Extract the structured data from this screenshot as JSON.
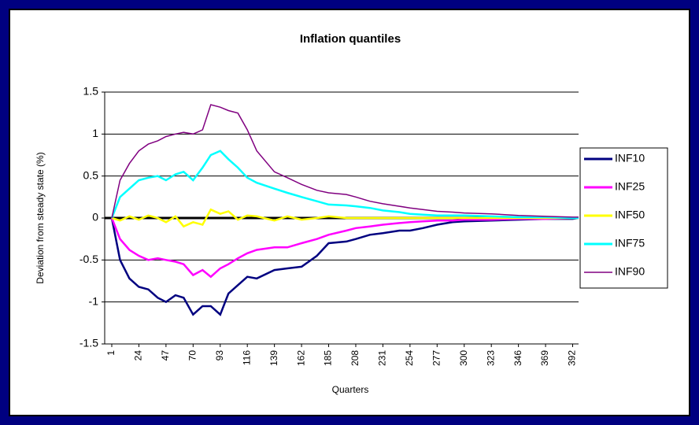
{
  "chart_data": {
    "type": "line",
    "title": "Inflation quantiles",
    "x_label": "Quarters",
    "y_label": "Deviation from steady state (%)",
    "x": [
      1,
      8,
      16,
      24,
      32,
      40,
      47,
      55,
      62,
      70,
      78,
      85,
      93,
      100,
      108,
      116,
      124,
      139,
      150,
      162,
      175,
      185,
      200,
      208,
      220,
      231,
      245,
      254,
      265,
      277,
      290,
      300,
      323,
      346,
      369,
      392,
      397
    ],
    "series": [
      {
        "name": "INF10",
        "color": "#000080",
        "values": [
          0,
          -0.5,
          -0.72,
          -0.82,
          -0.85,
          -0.95,
          -1.0,
          -0.92,
          -0.95,
          -1.15,
          -1.05,
          -1.05,
          -1.15,
          -0.9,
          -0.8,
          -0.7,
          -0.72,
          -0.62,
          -0.6,
          -0.58,
          -0.45,
          -0.3,
          -0.28,
          -0.25,
          -0.2,
          -0.18,
          -0.15,
          -0.15,
          -0.12,
          -0.08,
          -0.05,
          -0.04,
          -0.03,
          -0.02,
          -0.01,
          -0.01,
          0
        ]
      },
      {
        "name": "INF25",
        "color": "#ff00ff",
        "values": [
          0,
          -0.25,
          -0.38,
          -0.45,
          -0.5,
          -0.48,
          -0.5,
          -0.52,
          -0.55,
          -0.68,
          -0.62,
          -0.7,
          -0.6,
          -0.55,
          -0.48,
          -0.42,
          -0.38,
          -0.35,
          -0.35,
          -0.3,
          -0.25,
          -0.2,
          -0.15,
          -0.12,
          -0.1,
          -0.08,
          -0.06,
          -0.05,
          -0.04,
          -0.03,
          -0.03,
          -0.02,
          -0.02,
          -0.01,
          -0.01,
          0,
          0
        ]
      },
      {
        "name": "INF50",
        "color": "#ffff00",
        "values": [
          0,
          -0.03,
          0.02,
          -0.02,
          0.03,
          0,
          -0.05,
          0.02,
          -0.1,
          -0.05,
          -0.08,
          0.1,
          0.05,
          0.08,
          -0.02,
          0.03,
          0.02,
          -0.03,
          0.02,
          -0.02,
          0,
          0.02,
          0,
          0,
          0,
          0,
          0,
          0,
          0,
          0,
          0,
          0,
          0,
          0,
          0,
          0,
          0
        ]
      },
      {
        "name": "INF75",
        "color": "#00ffff",
        "values": [
          0,
          0.25,
          0.35,
          0.45,
          0.48,
          0.5,
          0.45,
          0.52,
          0.55,
          0.45,
          0.6,
          0.75,
          0.8,
          0.7,
          0.6,
          0.48,
          0.42,
          0.35,
          0.3,
          0.25,
          0.2,
          0.16,
          0.15,
          0.14,
          0.12,
          0.09,
          0.07,
          0.05,
          0.04,
          0.03,
          0.03,
          0.03,
          0.02,
          0.01,
          0.01,
          0,
          0
        ]
      },
      {
        "name": "INF90",
        "color": "#800080",
        "values": [
          0,
          0.45,
          0.65,
          0.8,
          0.88,
          0.92,
          0.97,
          1.0,
          1.02,
          1.0,
          1.05,
          1.35,
          1.32,
          1.28,
          1.25,
          1.05,
          0.8,
          0.55,
          0.48,
          0.4,
          0.33,
          0.3,
          0.28,
          0.25,
          0.2,
          0.17,
          0.14,
          0.12,
          0.1,
          0.08,
          0.07,
          0.06,
          0.05,
          0.03,
          0.02,
          0.01,
          0.01
        ]
      }
    ],
    "xlim": [
      -5,
      397
    ],
    "xticks": [
      1,
      24,
      47,
      70,
      93,
      116,
      139,
      162,
      185,
      208,
      231,
      254,
      277,
      300,
      323,
      346,
      369,
      392
    ],
    "ylim": [
      -1.5,
      1.5
    ],
    "yticks": [
      1.5,
      1,
      0.5,
      0,
      -0.5,
      -1,
      -1.5
    ],
    "grid": true,
    "legend": "right"
  }
}
